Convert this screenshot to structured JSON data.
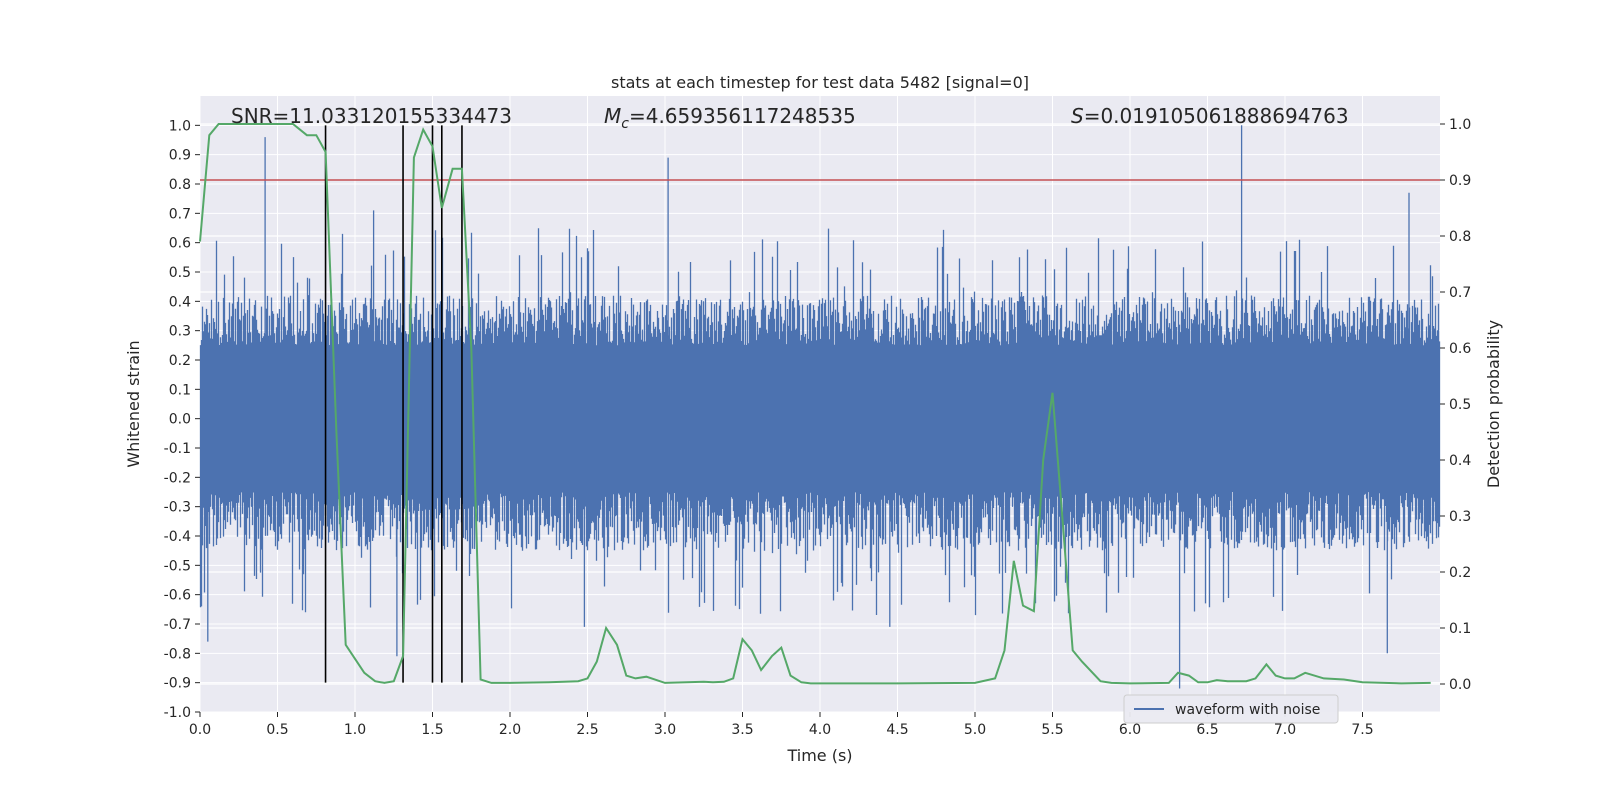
{
  "chart_data": {
    "type": "line",
    "title": "stats at each timestep for test data 5482 [signal=0]",
    "xlabel": "Time (s)",
    "ylabel": "Whitened strain",
    "y2label": "Detection probability",
    "xlim": [
      0.0,
      8.0
    ],
    "ylim": [
      -1.0,
      1.1
    ],
    "y2lim": [
      -0.05,
      1.05
    ],
    "xticks": [
      "0.0",
      "0.5",
      "1.0",
      "1.5",
      "2.0",
      "2.5",
      "3.0",
      "3.5",
      "4.0",
      "4.5",
      "5.0",
      "5.5",
      "6.0",
      "6.5",
      "7.0",
      "7.5"
    ],
    "yticks": [
      "1.0",
      "0.9",
      "0.8",
      "0.7",
      "0.6",
      "0.5",
      "0.4",
      "0.3",
      "0.2",
      "0.1",
      "0.0",
      "-0.1",
      "-0.2",
      "-0.3",
      "-0.4",
      "-0.5",
      "-0.6",
      "-0.7",
      "-0.8",
      "-0.9",
      "-1.0"
    ],
    "y2ticks": [
      "1.0",
      "0.9",
      "0.8",
      "0.7",
      "0.6",
      "0.5",
      "0.4",
      "0.3",
      "0.2",
      "0.1",
      "0.0"
    ],
    "annotations": {
      "snr": "SNR=11.033120155334473",
      "mc_symbol": "M",
      "mc_sub": "c",
      "mc_value": "=4.659356117248535",
      "s_symbol": "S",
      "s_value": "=0.019105061888694763"
    },
    "legend": {
      "label": "waveform with noise",
      "location": "lower-right"
    },
    "threshold": {
      "value": 0.9,
      "axis": "y2",
      "color": "#c44e52"
    },
    "vlines": {
      "x": [
        0.81,
        1.31,
        1.5,
        1.56,
        1.69
      ],
      "ymin": -0.9,
      "ymax": 1.0,
      "color": "#000000"
    },
    "waveform": {
      "name": "waveform with noise",
      "color": "#4c72b0",
      "band_bottom_range": [
        -0.45,
        -0.25
      ],
      "band_top_range": [
        0.25,
        0.42
      ],
      "notable_spikes": [
        {
          "x": 0.42,
          "y": 0.96
        },
        {
          "x": 0.05,
          "y": -0.76
        },
        {
          "x": 3.02,
          "y": 0.89
        },
        {
          "x": 6.72,
          "y": 1.0
        },
        {
          "x": 7.8,
          "y": 0.77
        },
        {
          "x": 6.32,
          "y": -0.92
        },
        {
          "x": 1.27,
          "y": -0.81
        },
        {
          "x": 7.66,
          "y": -0.8
        },
        {
          "x": 4.45,
          "y": -0.71
        },
        {
          "x": 2.48,
          "y": -0.71
        },
        {
          "x": 1.12,
          "y": 0.71
        },
        {
          "x": 1.5,
          "y": 0.71
        }
      ]
    },
    "series": [
      {
        "name": "detection probability",
        "color": "#55a868",
        "axis": "y2",
        "x": [
          0.0,
          0.06,
          0.12,
          0.25,
          0.44,
          0.6,
          0.69,
          0.75,
          0.81,
          0.88,
          0.94,
          1.06,
          1.13,
          1.19,
          1.25,
          1.31,
          1.38,
          1.44,
          1.5,
          1.56,
          1.63,
          1.69,
          1.75,
          1.81,
          1.88,
          2.0,
          2.25,
          2.44,
          2.5,
          2.56,
          2.62,
          2.69,
          2.75,
          2.81,
          2.88,
          3.0,
          3.25,
          3.31,
          3.38,
          3.44,
          3.5,
          3.56,
          3.62,
          3.69,
          3.75,
          3.81,
          3.88,
          3.94,
          4.0,
          4.5,
          5.0,
          5.13,
          5.19,
          5.25,
          5.31,
          5.38,
          5.44,
          5.5,
          5.56,
          5.63,
          5.69,
          5.81,
          5.88,
          6.0,
          6.25,
          6.31,
          6.38,
          6.44,
          6.5,
          6.56,
          6.63,
          6.75,
          6.81,
          6.88,
          6.94,
          7.0,
          7.06,
          7.13,
          7.25,
          7.38,
          7.5,
          7.75,
          7.94
        ],
        "values": [
          0.79,
          0.98,
          1.0,
          1.0,
          1.0,
          1.0,
          0.98,
          0.98,
          0.95,
          0.45,
          0.07,
          0.02,
          0.005,
          0.002,
          0.005,
          0.05,
          0.94,
          0.99,
          0.96,
          0.85,
          0.92,
          0.92,
          0.6,
          0.008,
          0.002,
          0.002,
          0.003,
          0.005,
          0.01,
          0.04,
          0.1,
          0.07,
          0.015,
          0.01,
          0.013,
          0.002,
          0.004,
          0.003,
          0.004,
          0.01,
          0.08,
          0.06,
          0.025,
          0.05,
          0.065,
          0.015,
          0.003,
          0.001,
          0.001,
          0.001,
          0.002,
          0.01,
          0.06,
          0.22,
          0.14,
          0.13,
          0.4,
          0.52,
          0.31,
          0.06,
          0.04,
          0.005,
          0.002,
          0.001,
          0.002,
          0.02,
          0.015,
          0.003,
          0.003,
          0.007,
          0.005,
          0.005,
          0.01,
          0.035,
          0.015,
          0.01,
          0.01,
          0.02,
          0.01,
          0.008,
          0.003,
          0.001,
          0.002
        ]
      }
    ]
  }
}
